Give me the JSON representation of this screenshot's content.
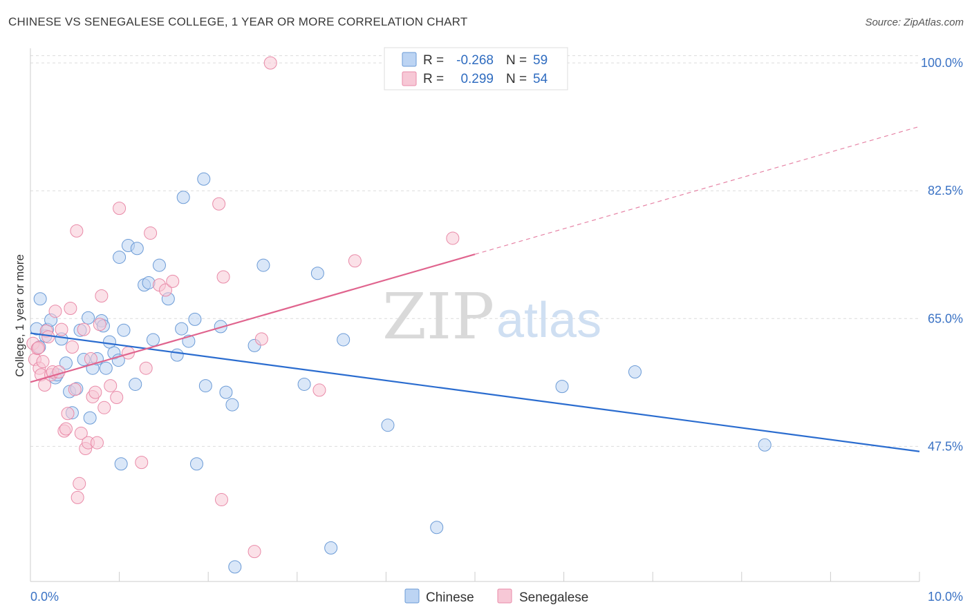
{
  "title": "CHINESE VS SENEGALESE COLLEGE, 1 YEAR OR MORE CORRELATION CHART",
  "source": "Source: ZipAtlas.com",
  "watermark": {
    "zip": "ZIP",
    "atlas": "atlas"
  },
  "colors": {
    "chinese_fill": "#bcd4f3",
    "chinese_stroke": "#6a9ad6",
    "chinese_line": "#2a6ccf",
    "senegalese_fill": "#f7c8d6",
    "senegalese_stroke": "#e98aa8",
    "senegalese_line": "#e0648e",
    "grid": "#dcdcdc",
    "tick_text": "#3a72c4"
  },
  "legend": {
    "chinese": {
      "r_label": "R =",
      "r_value": "-0.268",
      "n_label": "N =",
      "n_value": "59"
    },
    "senegalese": {
      "r_label": "R =",
      "r_value": "0.299",
      "n_label": "N =",
      "n_value": "54"
    }
  },
  "bottom_legend": {
    "chinese": "Chinese",
    "senegalese": "Senegalese"
  },
  "chart_data": {
    "type": "scatter",
    "title": "CHINESE VS SENEGALESE COLLEGE, 1 YEAR OR MORE CORRELATION CHART",
    "xlabel": "",
    "ylabel": "College, 1 year or more",
    "xlim": [
      0.0,
      10.0
    ],
    "ylim": [
      29.0,
      102.0
    ],
    "x_tick_labels": [
      "0.0%",
      "10.0%"
    ],
    "y_ticks": [
      47.5,
      65.0,
      82.5,
      100.0
    ],
    "y_tick_labels": [
      "47.5%",
      "65.0%",
      "82.5%",
      "100.0%"
    ],
    "grid": true,
    "series": [
      {
        "name": "Chinese",
        "points": [
          [
            0.07,
            63.6
          ],
          [
            0.1,
            61.1
          ],
          [
            0.11,
            67.7
          ],
          [
            0.17,
            62.6
          ],
          [
            0.19,
            63.5
          ],
          [
            0.23,
            64.8
          ],
          [
            0.28,
            56.9
          ],
          [
            0.3,
            57.3
          ],
          [
            0.35,
            62.2
          ],
          [
            0.4,
            58.9
          ],
          [
            0.44,
            55.0
          ],
          [
            0.47,
            52.1
          ],
          [
            0.52,
            55.4
          ],
          [
            0.56,
            63.4
          ],
          [
            0.6,
            59.4
          ],
          [
            0.65,
            65.1
          ],
          [
            0.67,
            51.4
          ],
          [
            0.7,
            58.2
          ],
          [
            0.75,
            59.5
          ],
          [
            0.8,
            64.7
          ],
          [
            0.82,
            64.0
          ],
          [
            0.85,
            58.2
          ],
          [
            0.89,
            61.8
          ],
          [
            0.94,
            60.3
          ],
          [
            0.99,
            59.3
          ],
          [
            1.0,
            73.4
          ],
          [
            1.02,
            45.1
          ],
          [
            1.05,
            63.4
          ],
          [
            1.1,
            75.0
          ],
          [
            1.2,
            74.6
          ],
          [
            1.18,
            56.0
          ],
          [
            1.28,
            69.6
          ],
          [
            1.33,
            69.9
          ],
          [
            1.38,
            62.1
          ],
          [
            1.45,
            72.3
          ],
          [
            1.55,
            67.7
          ],
          [
            1.65,
            60.0
          ],
          [
            1.7,
            63.6
          ],
          [
            1.72,
            81.6
          ],
          [
            1.78,
            61.9
          ],
          [
            1.85,
            64.9
          ],
          [
            1.87,
            45.1
          ],
          [
            1.95,
            84.1
          ],
          [
            1.97,
            55.8
          ],
          [
            2.14,
            63.9
          ],
          [
            2.2,
            54.9
          ],
          [
            2.27,
            53.2
          ],
          [
            2.3,
            31.0
          ],
          [
            2.52,
            61.3
          ],
          [
            2.62,
            72.3
          ],
          [
            3.08,
            56.0
          ],
          [
            3.23,
            71.2
          ],
          [
            3.38,
            33.6
          ],
          [
            3.52,
            62.1
          ],
          [
            4.02,
            50.4
          ],
          [
            4.57,
            36.4
          ],
          [
            5.98,
            55.7
          ],
          [
            6.8,
            57.7
          ],
          [
            8.26,
            47.7
          ]
        ]
      },
      {
        "name": "Senegalese",
        "points": [
          [
            0.03,
            61.6
          ],
          [
            0.05,
            59.4
          ],
          [
            0.08,
            60.9
          ],
          [
            0.1,
            58.2
          ],
          [
            0.12,
            57.3
          ],
          [
            0.14,
            59.1
          ],
          [
            0.16,
            55.9
          ],
          [
            0.18,
            63.3
          ],
          [
            0.2,
            62.5
          ],
          [
            0.23,
            57.3
          ],
          [
            0.25,
            57.7
          ],
          [
            0.28,
            66.0
          ],
          [
            0.32,
            57.7
          ],
          [
            0.35,
            63.5
          ],
          [
            0.38,
            49.6
          ],
          [
            0.4,
            49.9
          ],
          [
            0.42,
            52.0
          ],
          [
            0.45,
            66.4
          ],
          [
            0.47,
            61.1
          ],
          [
            0.5,
            55.3
          ],
          [
            0.52,
            77.0
          ],
          [
            0.55,
            42.4
          ],
          [
            0.53,
            40.5
          ],
          [
            0.57,
            49.3
          ],
          [
            0.6,
            63.5
          ],
          [
            0.62,
            47.2
          ],
          [
            0.65,
            48.0
          ],
          [
            0.68,
            59.5
          ],
          [
            0.7,
            54.3
          ],
          [
            0.73,
            54.9
          ],
          [
            0.75,
            48.0
          ],
          [
            0.78,
            64.2
          ],
          [
            0.8,
            68.1
          ],
          [
            0.83,
            52.8
          ],
          [
            0.9,
            55.8
          ],
          [
            0.97,
            54.2
          ],
          [
            1.0,
            80.1
          ],
          [
            1.1,
            60.3
          ],
          [
            1.25,
            45.3
          ],
          [
            1.3,
            58.2
          ],
          [
            1.35,
            76.7
          ],
          [
            1.45,
            69.6
          ],
          [
            1.52,
            68.9
          ],
          [
            1.6,
            70.1
          ],
          [
            2.12,
            80.7
          ],
          [
            2.15,
            40.2
          ],
          [
            2.17,
            70.7
          ],
          [
            2.52,
            33.1
          ],
          [
            2.6,
            62.2
          ],
          [
            2.7,
            100.0
          ],
          [
            3.25,
            55.2
          ],
          [
            3.65,
            72.9
          ],
          [
            4.75,
            76.0
          ],
          [
            0.09,
            61.0
          ]
        ]
      }
    ],
    "trendlines": [
      {
        "series": "Chinese",
        "x": [
          0.0,
          10.0
        ],
        "y": [
          63.0,
          46.8
        ],
        "style": "solid"
      },
      {
        "series": "Senegalese",
        "x": [
          0.0,
          5.0
        ],
        "y": [
          56.3,
          73.8
        ],
        "style": "solid"
      },
      {
        "series": "Senegalese",
        "x": [
          5.0,
          10.0
        ],
        "y": [
          73.8,
          91.3
        ],
        "style": "dashed"
      }
    ]
  }
}
